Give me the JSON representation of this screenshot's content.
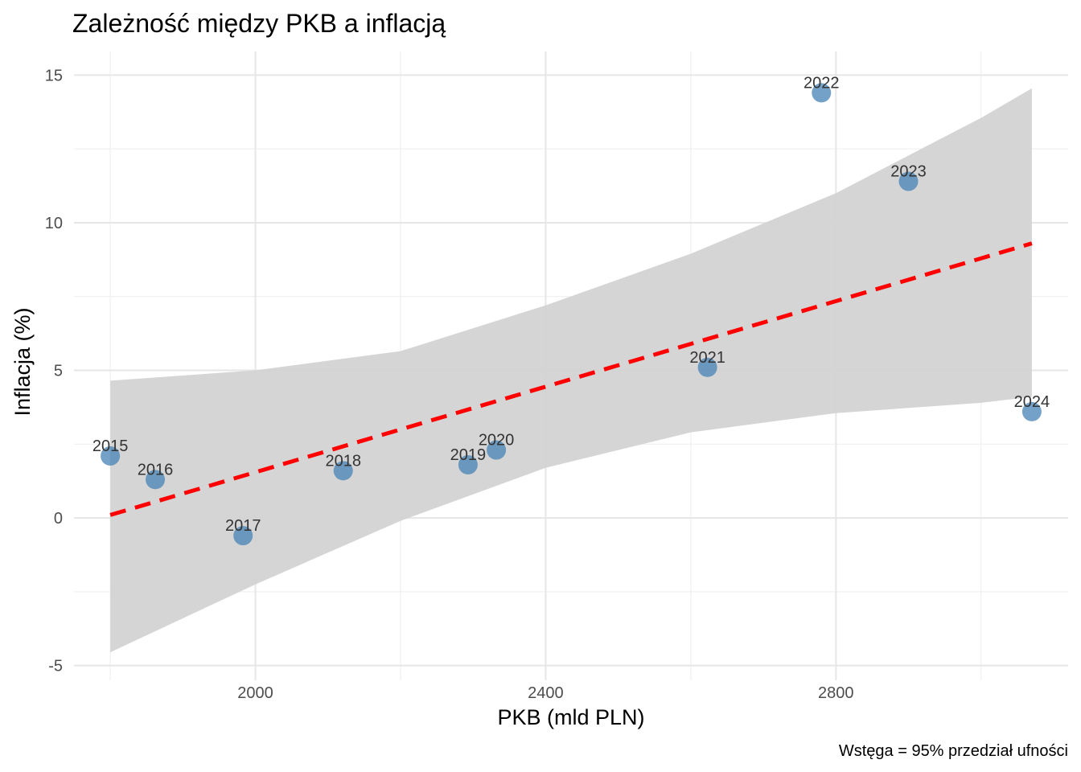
{
  "chart_data": {
    "type": "scatter",
    "title": "Zależność między PKB a inflacją",
    "xlabel": "PKB (mld PLN)",
    "ylabel": "Inflacja (%)",
    "caption": "Wstęga = 95% przedział ufności",
    "xlim": [
      1750,
      3120
    ],
    "ylim": [
      -5.5,
      15.8
    ],
    "x_ticks": [
      2000,
      2400,
      2800
    ],
    "y_ticks": [
      -5,
      0,
      5,
      10,
      15
    ],
    "x_minor": [
      1800,
      2200,
      2600,
      3000
    ],
    "y_minor": [
      -2.5,
      2.5,
      7.5,
      12.5
    ],
    "grid": true,
    "point_color": "#4682b4",
    "line_color": "#ff0000",
    "band_color": "#d3d3d3",
    "points": [
      {
        "label": "2015",
        "x": 1800,
        "y": 2.1
      },
      {
        "label": "2016",
        "x": 1862,
        "y": 1.3
      },
      {
        "label": "2017",
        "x": 1983,
        "y": -0.6
      },
      {
        "label": "2018",
        "x": 2121,
        "y": 1.6
      },
      {
        "label": "2019",
        "x": 2293,
        "y": 1.8
      },
      {
        "label": "2020",
        "x": 2332,
        "y": 2.3
      },
      {
        "label": "2021",
        "x": 2623,
        "y": 5.1
      },
      {
        "label": "2022",
        "x": 2780,
        "y": 14.4
      },
      {
        "label": "2023",
        "x": 2900,
        "y": 11.4
      },
      {
        "label": "2024",
        "x": 3070,
        "y": 3.6
      }
    ],
    "regression": {
      "x": [
        1800,
        3070
      ],
      "y": [
        0.1,
        9.3
      ]
    },
    "confidence_band": {
      "x": [
        1800,
        2000,
        2200,
        2400,
        2600,
        2800,
        3000,
        3070
      ],
      "upper": [
        4.65,
        5.0,
        5.65,
        7.2,
        8.95,
        11.0,
        13.55,
        14.55
      ],
      "lower": [
        -4.55,
        -2.25,
        -0.1,
        1.7,
        2.9,
        3.55,
        3.9,
        4.1
      ]
    }
  }
}
